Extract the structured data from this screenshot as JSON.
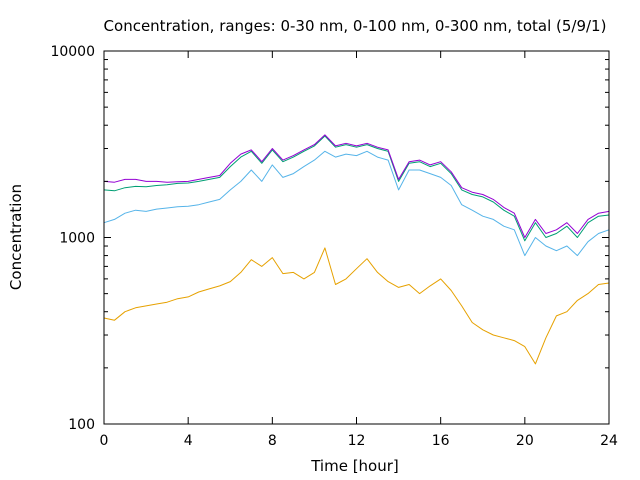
{
  "chart_data": {
    "type": "line",
    "title": "Concentration, ranges: 0-30 nm, 0-100 nm, 0-300 nm, total (5/9/1)",
    "xlabel": "Time [hour]",
    "ylabel": "Concentration",
    "xlim": [
      0,
      24
    ],
    "ylim": [
      100,
      10000
    ],
    "yscale": "log",
    "grid": false,
    "legend": "none",
    "x_ticks": [
      "0",
      "4",
      "8",
      "12",
      "16",
      "20",
      "24"
    ],
    "y_ticks": [
      "100",
      "1000",
      "10000"
    ],
    "x": [
      0,
      0.5,
      1,
      1.5,
      2,
      2.5,
      3,
      3.5,
      4,
      4.5,
      5,
      5.5,
      6,
      6.5,
      7,
      7.5,
      8,
      8.5,
      9,
      9.5,
      10,
      10.5,
      11,
      11.5,
      12,
      12.5,
      13,
      13.5,
      14,
      14.5,
      15,
      15.5,
      16,
      16.5,
      17,
      17.5,
      18,
      18.5,
      19,
      19.5,
      20,
      20.5,
      21,
      21.5,
      22,
      22.5,
      23,
      23.5,
      24
    ],
    "series": [
      {
        "color": "#e6a100",
        "values": [
          370,
          360,
          400,
          420,
          430,
          440,
          450,
          470,
          480,
          510,
          530,
          550,
          580,
          650,
          760,
          700,
          780,
          640,
          650,
          600,
          650,
          880,
          560,
          600,
          680,
          770,
          650,
          580,
          540,
          560,
          500,
          550,
          600,
          520,
          430,
          350,
          320,
          300,
          290,
          280,
          260,
          210,
          290,
          380,
          400,
          460,
          500,
          560,
          570
        ]
      },
      {
        "color": "#56b4e9",
        "values": [
          1200,
          1250,
          1350,
          1400,
          1380,
          1420,
          1440,
          1460,
          1470,
          1500,
          1550,
          1600,
          1800,
          2000,
          2300,
          2000,
          2450,
          2100,
          2200,
          2400,
          2600,
          2900,
          2700,
          2800,
          2750,
          2900,
          2700,
          2600,
          1800,
          2300,
          2300,
          2200,
          2100,
          1900,
          1500,
          1400,
          1300,
          1250,
          1150,
          1100,
          800,
          1000,
          900,
          850,
          900,
          800,
          950,
          1050,
          1100
        ]
      },
      {
        "color": "#009e73",
        "values": [
          1800,
          1780,
          1850,
          1880,
          1870,
          1900,
          1920,
          1950,
          1960,
          2000,
          2050,
          2100,
          2400,
          2700,
          2900,
          2500,
          2950,
          2550,
          2700,
          2900,
          3100,
          3500,
          3050,
          3150,
          3050,
          3150,
          3000,
          2900,
          2000,
          2500,
          2550,
          2400,
          2500,
          2200,
          1800,
          1700,
          1650,
          1550,
          1400,
          1300,
          960,
          1200,
          1000,
          1050,
          1150,
          1000,
          1200,
          1300,
          1320
        ]
      },
      {
        "color": "#9400d3",
        "values": [
          2000,
          1980,
          2050,
          2050,
          2000,
          2000,
          1980,
          1990,
          2000,
          2050,
          2100,
          2150,
          2500,
          2800,
          2950,
          2550,
          3000,
          2600,
          2750,
          2950,
          3150,
          3550,
          3100,
          3200,
          3100,
          3200,
          3050,
          2950,
          2050,
          2550,
          2600,
          2450,
          2550,
          2250,
          1850,
          1750,
          1700,
          1600,
          1450,
          1350,
          1000,
          1250,
          1050,
          1100,
          1200,
          1050,
          1250,
          1350,
          1380
        ]
      }
    ]
  }
}
